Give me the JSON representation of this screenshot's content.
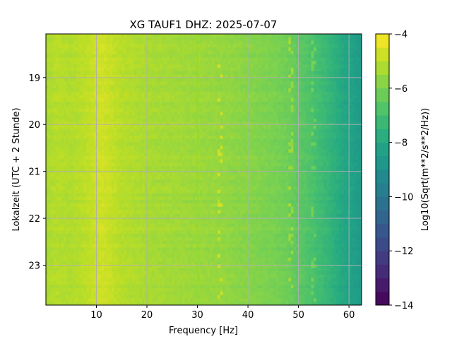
{
  "chart_data": {
    "type": "heatmap",
    "title": "XG TAUF1  DHZ: 2025-07-07",
    "xlabel": "Frequency [Hz]",
    "ylabel": "Lokalzeit (UTC + 2 Stunde)",
    "colorbar_label": "Log10(Sqrt(m**2/s**2/Hz))",
    "colormap": "viridis",
    "xlim": [
      0,
      62.5
    ],
    "ylim": [
      18.07,
      23.85
    ],
    "y_inverted": true,
    "x_ticks": [
      10,
      20,
      30,
      40,
      50,
      60
    ],
    "y_ticks": [
      19,
      20,
      21,
      22,
      23
    ],
    "colorbar_range": [
      -14,
      -4
    ],
    "colorbar_ticks": [
      -14,
      -12,
      -10,
      -8,
      -6,
      -4
    ],
    "grid": true,
    "z_profile_by_frequency": [
      {
        "freq": 0,
        "value": -5.3
      },
      {
        "freq": 2,
        "value": -5.1
      },
      {
        "freq": 5,
        "value": -5.2
      },
      {
        "freq": 8,
        "value": -5.0
      },
      {
        "freq": 11,
        "value": -4.7
      },
      {
        "freq": 13,
        "value": -4.9
      },
      {
        "freq": 15,
        "value": -5.1
      },
      {
        "freq": 20,
        "value": -5.3
      },
      {
        "freq": 25,
        "value": -5.4
      },
      {
        "freq": 30,
        "value": -5.5
      },
      {
        "freq": 35,
        "value": -5.6
      },
      {
        "freq": 40,
        "value": -5.8
      },
      {
        "freq": 45,
        "value": -6.0
      },
      {
        "freq": 48,
        "value": -6.2
      },
      {
        "freq": 50,
        "value": -6.5
      },
      {
        "freq": 53,
        "value": -6.9
      },
      {
        "freq": 56,
        "value": -7.4
      },
      {
        "freq": 59,
        "value": -8.0
      },
      {
        "freq": 62.5,
        "value": -8.6
      }
    ],
    "notable_lines_hz": [
      34.5,
      48.5,
      53.0
    ]
  },
  "colors": {
    "grid": "#b0b0b0",
    "axes": "#000000"
  }
}
